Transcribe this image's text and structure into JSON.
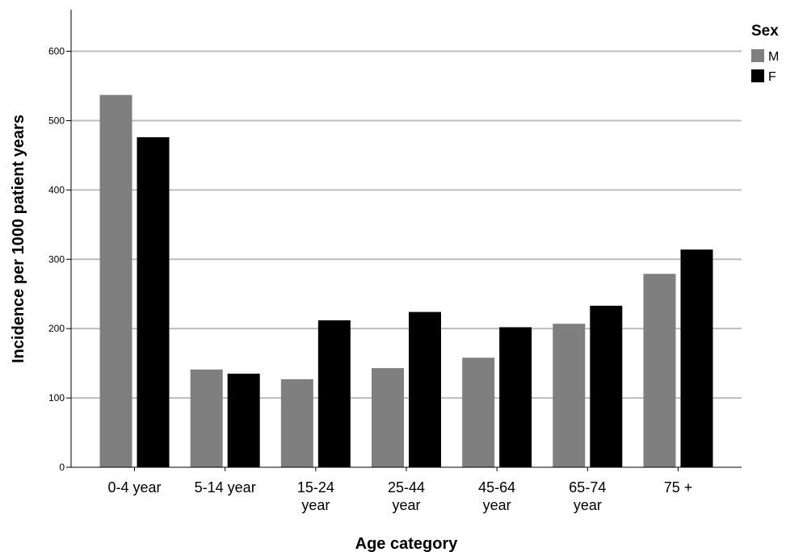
{
  "chart_data": {
    "type": "bar",
    "xlabel": "Age category",
    "ylabel": "Incidence per 1000 patient years",
    "ylim": [
      0,
      660
    ],
    "yticks": [
      0,
      100,
      200,
      300,
      400,
      500,
      600
    ],
    "grid": true,
    "categories": [
      [
        "0-4 year"
      ],
      [
        "5-14 year"
      ],
      [
        "15-24",
        "year"
      ],
      [
        "25-44",
        "year"
      ],
      [
        "45-64",
        "year"
      ],
      [
        "65-74",
        "year"
      ],
      [
        "75 +"
      ]
    ],
    "legend": {
      "title": "Sex",
      "position": "top-right"
    },
    "series": [
      {
        "name": "M",
        "color": "#7f7f7f",
        "values": [
          537,
          141,
          127,
          143,
          158,
          207,
          279
        ]
      },
      {
        "name": "F",
        "color": "#000000",
        "values": [
          476,
          135,
          212,
          224,
          202,
          233,
          314
        ]
      }
    ]
  }
}
